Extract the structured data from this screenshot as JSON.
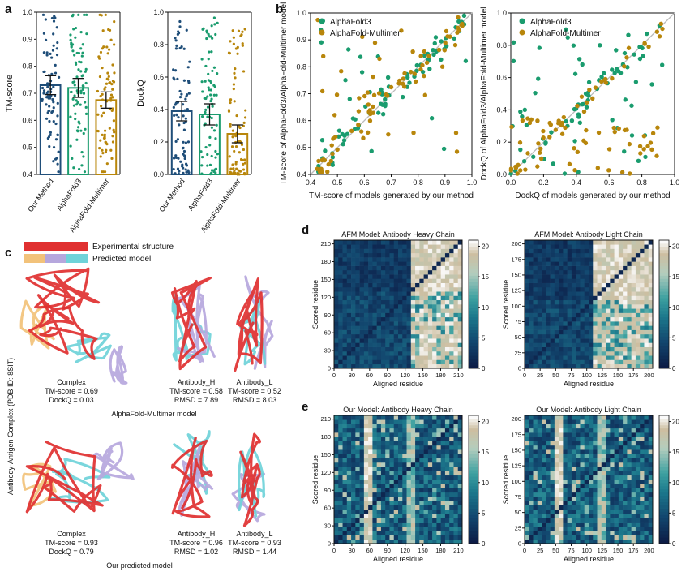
{
  "colors": {
    "our": "#1f4e79",
    "af3": "#1a9c6e",
    "multimer": "#b8860b",
    "experimental": "#e03030",
    "pred1": "#f2c27a",
    "pred2": "#b6a7dd",
    "pred3": "#6fd3d9",
    "diag": "#bbbbbb"
  },
  "panel_labels": {
    "a": "a",
    "b": "b",
    "c": "c",
    "d": "d",
    "e": "e"
  },
  "panel_c": {
    "legend_experimental": "Experimental structure",
    "legend_predicted": "Predicted model",
    "side_label": "Antibody-Antigen Complex (PDB ID: 8SIT)",
    "row1_caption": "AlphaFold-Multimer model",
    "row2_caption": "Our predicted model",
    "row1": {
      "complex_name": "Complex",
      "complex_tm": "TM-score = 0.69",
      "complex_dockq": "DockQ = 0.03",
      "h_name": "Antibody_H",
      "h_tm": "TM-score = 0.58",
      "h_rmsd": "RMSD = 7.89",
      "l_name": "Antibody_L",
      "l_tm": "TM-score = 0.52",
      "l_rmsd": "RMSD = 8.03"
    },
    "row2": {
      "complex_name": "Complex",
      "complex_tm": "TM-score = 0.93",
      "complex_dockq": "DockQ = 0.79",
      "h_name": "Antibody_H",
      "h_tm": "TM-score = 0.96",
      "h_rmsd": "RMSD = 1.02",
      "l_name": "Antibody_L",
      "l_tm": "TM-score = 0.93",
      "l_rmsd": "RMSD = 1.44"
    }
  },
  "chart_data": [
    {
      "id": "a1",
      "type": "bar",
      "ylabel": "TM-score",
      "categories": [
        "Our Method",
        "AlphaFold3",
        "AlphaFold-Multimer"
      ],
      "values": [
        0.73,
        0.72,
        0.675
      ],
      "errors": [
        0.035,
        0.035,
        0.03
      ],
      "ylim": [
        0.4,
        1.0
      ],
      "yticks": [
        "0.4",
        "0.5",
        "0.6",
        "0.7",
        "0.8",
        "0.9",
        "1.0"
      ]
    },
    {
      "id": "a2",
      "type": "bar",
      "ylabel": "DockQ",
      "categories": [
        "Our Method",
        "AlphaFold3",
        "AlphaFold-Multimer"
      ],
      "values": [
        0.39,
        0.37,
        0.25
      ],
      "errors": [
        0.06,
        0.065,
        0.055
      ],
      "ylim": [
        0.0,
        1.0
      ],
      "yticks": [
        "0.0",
        "0.2",
        "0.4",
        "0.6",
        "0.8",
        "1.0"
      ]
    },
    {
      "id": "b1",
      "type": "scatter",
      "xlabel": "TM-score of models generated by our method",
      "ylabel": "TM-score of AlphaFold3/AlphaFold-Multimer model",
      "legend": [
        "AlphaFold3",
        "AlphaFold-Multimer"
      ],
      "legend_position": "top-left",
      "xlim": [
        0.4,
        1.0
      ],
      "ylim": [
        0.4,
        1.0
      ],
      "xticks": [
        "0.4",
        "0.5",
        "0.6",
        "0.7",
        "0.8",
        "0.9",
        "1.0"
      ],
      "yticks": [
        "0.4",
        "0.5",
        "0.6",
        "0.7",
        "0.8",
        "0.9",
        "1.0"
      ]
    },
    {
      "id": "b2",
      "type": "scatter",
      "xlabel": "DockQ of models generated by our method",
      "ylabel": "DockQ of AlphaFold3/AlphaFold-Multimer model",
      "legend": [
        "AlphaFold3",
        "AlphaFold-Multimer"
      ],
      "legend_position": "top-left",
      "xlim": [
        0.0,
        1.0
      ],
      "ylim": [
        0.0,
        1.0
      ],
      "xticks": [
        "0.0",
        "0.2",
        "0.4",
        "0.6",
        "0.8",
        "1.0"
      ],
      "yticks": [
        "0.0",
        "0.2",
        "0.4",
        "0.6",
        "0.8",
        "1.0"
      ]
    },
    {
      "id": "d1",
      "type": "heatmap",
      "title": "AFM Model: Antibody Heavy Chain",
      "xlabel": "Aligned residue",
      "ylabel": "Scored residue",
      "xticks": [
        "0",
        "30",
        "60",
        "90",
        "120",
        "150",
        "180",
        "210"
      ],
      "yticks": [
        "0",
        "30",
        "60",
        "90",
        "120",
        "150",
        "180",
        "210"
      ],
      "colorbar_ticks": [
        "0",
        "5",
        "10",
        "15",
        "20"
      ]
    },
    {
      "id": "d2",
      "type": "heatmap",
      "title": "AFM Model: Antibody Light Chain",
      "xlabel": "Aligned residue",
      "ylabel": "Scored residue",
      "xticks": [
        "0",
        "25",
        "50",
        "75",
        "100",
        "125",
        "150",
        "175",
        "200"
      ],
      "yticks": [
        "0",
        "25",
        "50",
        "75",
        "100",
        "125",
        "150",
        "175",
        "200"
      ],
      "colorbar_ticks": [
        "0",
        "5",
        "10",
        "15",
        "20"
      ]
    },
    {
      "id": "e1",
      "type": "heatmap",
      "title": "Our Model: Antibody Heavy Chain",
      "xlabel": "Aligned residue",
      "ylabel": "Scored residue",
      "xticks": [
        "0",
        "30",
        "60",
        "90",
        "120",
        "150",
        "180",
        "210"
      ],
      "yticks": [
        "0",
        "30",
        "60",
        "90",
        "120",
        "150",
        "180",
        "210"
      ],
      "colorbar_ticks": [
        "0",
        "5",
        "10",
        "15",
        "20"
      ]
    },
    {
      "id": "e2",
      "type": "heatmap",
      "title": "Our Model: Antibody Light Chain",
      "xlabel": "Aligned residue",
      "ylabel": "Scored residue",
      "xticks": [
        "0",
        "25",
        "50",
        "75",
        "100",
        "125",
        "150",
        "175",
        "200"
      ],
      "yticks": [
        "0",
        "25",
        "50",
        "75",
        "100",
        "125",
        "150",
        "175",
        "200"
      ],
      "colorbar_ticks": [
        "0",
        "5",
        "10",
        "15",
        "20"
      ]
    }
  ]
}
